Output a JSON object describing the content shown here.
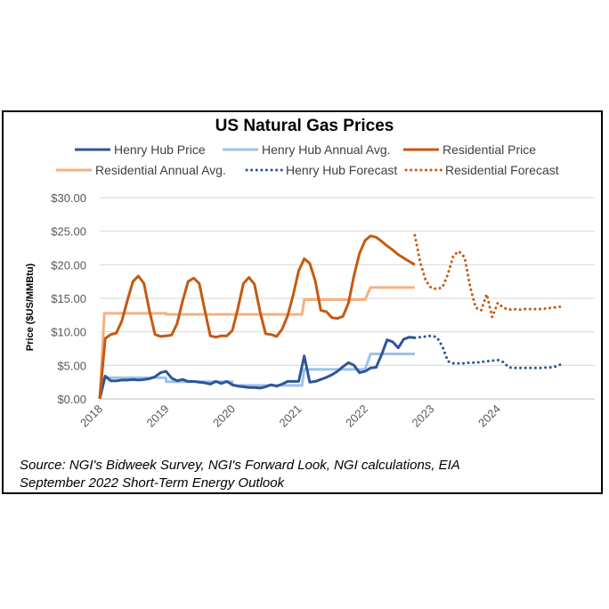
{
  "chart_data": {
    "type": "line",
    "title": "US Natural Gas Prices",
    "ylabel": "Price ($US/MMBtu)",
    "xlabel": "",
    "ylim": [
      0,
      30
    ],
    "xlim": [
      2018,
      2025.2
    ],
    "y_ticks": [
      "$0.00",
      "$5.00",
      "$10.00",
      "$15.00",
      "$20.00",
      "$25.00",
      "$30.00"
    ],
    "y_tick_values": [
      0,
      5,
      10,
      15,
      20,
      25,
      30
    ],
    "x_ticks": [
      "2018",
      "2019",
      "2020",
      "2021",
      "2022",
      "2023",
      "2024"
    ],
    "x_tick_values": [
      2018,
      2019,
      2020,
      2021,
      2022,
      2023,
      2024
    ],
    "grid": true,
    "legend_position": "top",
    "series": [
      {
        "name": "Henry Hub Price",
        "color": "#2f5597",
        "style": "solid",
        "x": [
          2018,
          2018.083,
          2018.167,
          2018.25,
          2018.333,
          2018.417,
          2018.5,
          2018.583,
          2018.667,
          2018.75,
          2018.833,
          2018.917,
          2019,
          2019.083,
          2019.167,
          2019.25,
          2019.333,
          2019.417,
          2019.5,
          2019.583,
          2019.667,
          2019.75,
          2019.833,
          2019.917,
          2020,
          2020.083,
          2020.167,
          2020.25,
          2020.333,
          2020.417,
          2020.5,
          2020.583,
          2020.667,
          2020.75,
          2020.833,
          2020.917,
          2021,
          2021.083,
          2021.167,
          2021.25,
          2021.333,
          2021.417,
          2021.5,
          2021.583,
          2021.667,
          2021.75,
          2021.833,
          2021.917,
          2022,
          2022.083,
          2022.167,
          2022.25,
          2022.333,
          2022.417,
          2022.5,
          2022.583,
          2022.667,
          2022.75
        ],
        "values": [
          0,
          3.4,
          2.7,
          2.7,
          2.8,
          2.8,
          2.9,
          2.8,
          2.9,
          3.0,
          3.3,
          3.9,
          4.1,
          3.1,
          2.7,
          2.9,
          2.6,
          2.6,
          2.5,
          2.4,
          2.2,
          2.6,
          2.3,
          2.6,
          2.1,
          1.9,
          1.8,
          1.7,
          1.7,
          1.6,
          1.8,
          2.1,
          1.9,
          2.2,
          2.6,
          2.6,
          2.6,
          6.4,
          2.5,
          2.6,
          2.9,
          3.2,
          3.6,
          4.1,
          4.8,
          5.4,
          5.0,
          3.9,
          4.1,
          4.6,
          4.7,
          6.6,
          8.8,
          8.5,
          7.6,
          8.9,
          9.2,
          9.1
        ]
      },
      {
        "name": "Henry Hub Annual Avg.",
        "color": "#9dc3e6",
        "style": "solid",
        "x": [
          2018,
          2018.07,
          2019,
          2019,
          2020,
          2020,
          2021,
          2021.05,
          2021.083,
          2022,
          2022.083,
          2022.75
        ],
        "values": [
          0,
          3.15,
          3.15,
          2.56,
          2.56,
          2.0,
          2.0,
          2.0,
          4.4,
          4.4,
          6.7,
          6.7
        ]
      },
      {
        "name": "Residential Price",
        "color": "#c55a11",
        "style": "solid",
        "x": [
          2018,
          2018.083,
          2018.167,
          2018.25,
          2018.333,
          2018.417,
          2018.5,
          2018.583,
          2018.667,
          2018.75,
          2018.833,
          2018.917,
          2019,
          2019.083,
          2019.167,
          2019.25,
          2019.333,
          2019.417,
          2019.5,
          2019.583,
          2019.667,
          2019.75,
          2019.833,
          2019.917,
          2020,
          2020.083,
          2020.167,
          2020.25,
          2020.333,
          2020.417,
          2020.5,
          2020.583,
          2020.667,
          2020.75,
          2020.833,
          2020.917,
          2021,
          2021.083,
          2021.167,
          2021.25,
          2021.333,
          2021.417,
          2021.5,
          2021.583,
          2021.667,
          2021.75,
          2021.833,
          2021.917,
          2022,
          2022.083,
          2022.167,
          2022.25,
          2022.333,
          2022.417,
          2022.5,
          2022.583,
          2022.667,
          2022.75
        ],
        "values": [
          0,
          9.0,
          9.6,
          9.8,
          11.6,
          14.7,
          17.5,
          18.3,
          17.2,
          13.1,
          9.6,
          9.3,
          9.4,
          9.5,
          11.2,
          14.6,
          17.5,
          18.0,
          17.2,
          13.3,
          9.4,
          9.2,
          9.4,
          9.4,
          10.2,
          13.5,
          17.2,
          18.1,
          17.1,
          13.0,
          9.7,
          9.6,
          9.3,
          10.4,
          12.4,
          15.5,
          19.1,
          20.9,
          20.2,
          17.6,
          13.2,
          13.0,
          12.1,
          12.0,
          12.3,
          14.3,
          18.4,
          21.7,
          23.6,
          24.3,
          24.1,
          23.5,
          22.8,
          22.2,
          21.5,
          21.0,
          20.5,
          20.0
        ]
      },
      {
        "name": "Residential Annual Avg.",
        "color": "#f4b183",
        "style": "solid",
        "x": [
          2018,
          2018.07,
          2019,
          2019,
          2020,
          2020,
          2021,
          2021.05,
          2021.083,
          2022,
          2022.083,
          2022.75
        ],
        "values": [
          0,
          12.75,
          12.75,
          12.6,
          12.6,
          12.6,
          12.6,
          12.6,
          14.8,
          14.8,
          16.6,
          16.6
        ]
      },
      {
        "name": "Henry Hub Forecast",
        "color": "#2f5597",
        "style": "dotted",
        "x": [
          2022.75,
          2022.833,
          2022.917,
          2023,
          2023.083,
          2023.167,
          2023.25,
          2023.333,
          2023.417,
          2023.5,
          2023.583,
          2023.667,
          2023.75,
          2023.833,
          2023.917,
          2024,
          2024.083,
          2024.167,
          2024.25,
          2024.333,
          2024.417,
          2024.5,
          2024.583,
          2024.667,
          2024.75,
          2024.833,
          2024.917,
          2025
        ],
        "values": [
          9.1,
          9.2,
          9.3,
          9.4,
          9.2,
          7.8,
          5.6,
          5.3,
          5.3,
          5.3,
          5.4,
          5.4,
          5.5,
          5.6,
          5.7,
          5.8,
          5.5,
          4.7,
          4.6,
          4.6,
          4.6,
          4.6,
          4.6,
          4.6,
          4.7,
          4.7,
          5.0,
          5.3
        ]
      },
      {
        "name": "Residential Forecast",
        "color": "#c55a11",
        "style": "dotted",
        "x": [
          2022.75,
          2022.833,
          2022.917,
          2023,
          2023.083,
          2023.167,
          2023.25,
          2023.333,
          2023.417,
          2023.5,
          2023.583,
          2023.667,
          2023.75,
          2023.833,
          2023.917,
          2024,
          2024.083,
          2024.167,
          2024.25,
          2024.333,
          2024.417,
          2024.5,
          2024.583,
          2024.667,
          2024.75,
          2024.833,
          2024.917,
          2025
        ],
        "values": [
          24.4,
          20.3,
          17.6,
          16.5,
          16.4,
          16.6,
          18.6,
          21.4,
          22.0,
          21.1,
          16.8,
          13.6,
          13.2,
          15.6,
          12.2,
          14.3,
          13.6,
          13.3,
          13.4,
          13.3,
          13.4,
          13.4,
          13.4,
          13.4,
          13.5,
          13.6,
          13.7,
          13.8
        ]
      }
    ]
  },
  "source_line_1": "Source: NGI's Bidweek Survey, NGI's Forward Look, NGI calculations, EIA",
  "source_line_2": "September 2022 Short-Term Energy Outlook"
}
